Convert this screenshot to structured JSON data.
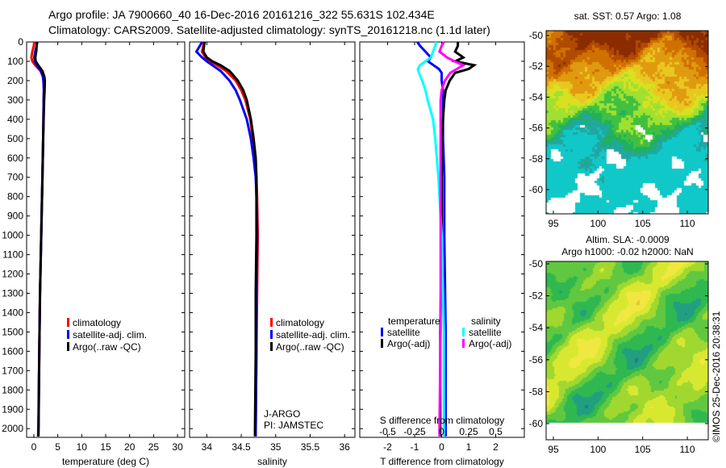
{
  "header": {
    "line1": "Argo profile: JA 7900660_40 16-Dec-2016 20161216_322 55.631S 102.434E",
    "line2": "Climatology: CARS2009. Satellite-adjusted climatology: synTS_20161218.nc (1.1d later)"
  },
  "colors": {
    "climatology": "#ff0000",
    "satellite": "#0000ff",
    "argo": "#000000",
    "sal_satellite": "#00ffff",
    "sal_argo": "#ff00ff"
  },
  "chart_data": [
    {
      "type": "line",
      "name": "temperature",
      "xlabel": "temperature (deg C)",
      "ylabel": "",
      "xlim": [
        -1.5,
        31.5
      ],
      "ylim": [
        2045,
        0
      ],
      "xticks": [
        0,
        5,
        10,
        15,
        20,
        25,
        30
      ],
      "yticks": [
        0,
        100,
        200,
        300,
        400,
        500,
        600,
        700,
        800,
        900,
        1000,
        1100,
        1200,
        1300,
        1400,
        1500,
        1600,
        1700,
        1800,
        1900,
        2000
      ],
      "legend": [
        "climatology",
        "satellite-adj. clim.",
        "Argo(..raw -QC)"
      ],
      "depth": [
        0,
        20,
        50,
        80,
        100,
        120,
        150,
        180,
        200,
        250,
        300,
        400,
        500,
        700,
        1000,
        1300,
        1600,
        2000,
        2040
      ],
      "series": [
        {
          "name": "climatology",
          "color": "#ff0000",
          "values": [
            0.1,
            0.0,
            -0.3,
            -0.5,
            -0.3,
            0.3,
            1.4,
            1.9,
            2.0,
            2.1,
            2.05,
            2.0,
            1.95,
            1.8,
            1.55,
            1.3,
            1.15,
            1.0,
            0.95
          ]
        },
        {
          "name": "satellite-adj. clim.",
          "color": "#0000ff",
          "values": [
            0.6,
            0.6,
            0.3,
            0.1,
            0.2,
            0.6,
            1.5,
            1.9,
            2.0,
            2.1,
            2.05,
            2.0,
            1.95,
            1.8,
            1.55,
            1.3,
            1.15,
            1.0,
            0.95
          ]
        },
        {
          "name": "Argo(..raw -QC)",
          "color": "#000000",
          "values": [
            0.7,
            0.6,
            0.5,
            0.3,
            0.4,
            0.9,
            1.8,
            2.2,
            2.3,
            2.25,
            2.15,
            2.05,
            1.95,
            1.8,
            1.55,
            1.3,
            1.15,
            0.95,
            0.9
          ]
        }
      ]
    },
    {
      "type": "line",
      "name": "salinity",
      "xlabel": "salinity",
      "xlim": [
        33.75,
        36.15
      ],
      "ylim": [
        2045,
        0
      ],
      "xticks": [
        34,
        34.5,
        35,
        35.5,
        36
      ],
      "legend": [
        "climatology",
        "satellite-adj. clim.",
        "Argo(..raw -QC)"
      ],
      "annotation": [
        "J-ARGO",
        "PI: JAMSTEC"
      ],
      "depth": [
        0,
        20,
        50,
        80,
        100,
        120,
        150,
        200,
        250,
        300,
        400,
        500,
        600,
        700,
        800,
        1000,
        1300,
        1600,
        2000,
        2040
      ],
      "series": [
        {
          "name": "climatology",
          "color": "#ff0000",
          "values": [
            33.95,
            33.95,
            33.93,
            33.98,
            34.05,
            34.15,
            34.28,
            34.42,
            34.5,
            34.56,
            34.63,
            34.67,
            34.7,
            34.72,
            34.73,
            34.74,
            34.73,
            34.72,
            34.71,
            34.71
          ]
        },
        {
          "name": "satellite-adj. clim.",
          "color": "#0000ff",
          "values": [
            33.93,
            33.9,
            33.85,
            33.93,
            34.0,
            34.08,
            34.2,
            34.33,
            34.42,
            34.48,
            34.58,
            34.64,
            34.68,
            34.71,
            34.72,
            34.73,
            34.72,
            34.72,
            34.71,
            34.71
          ]
        },
        {
          "name": "Argo(..raw -QC)",
          "color": "#000000",
          "values": [
            33.97,
            33.96,
            33.95,
            34.0,
            34.08,
            34.2,
            34.33,
            34.45,
            34.53,
            34.58,
            34.64,
            34.68,
            34.71,
            34.72,
            34.72,
            34.72,
            34.71,
            34.71,
            34.7,
            34.7
          ]
        }
      ]
    },
    {
      "type": "line",
      "name": "difference",
      "xlabel": "T difference from climatology",
      "x2label": "S difference from climatology",
      "xlim": [
        -3.03,
        3.06
      ],
      "ylim": [
        2045,
        0
      ],
      "xticks": [
        -2,
        -1,
        0,
        1,
        2
      ],
      "x2ticks": [
        -0.5,
        -0.25,
        0,
        0.25,
        0.5
      ],
      "legend_temperature": {
        "title": "temperature",
        "items": [
          "satellite",
          "Argo(-adj)"
        ]
      },
      "legend_salinity": {
        "title": "salinity",
        "items": [
          "satellite",
          "Argo(-adj)"
        ]
      },
      "depth": [
        0,
        20,
        50,
        80,
        100,
        120,
        140,
        160,
        200,
        250,
        300,
        400,
        500,
        700,
        1000,
        1500,
        2000,
        2040
      ],
      "series": [
        {
          "name": "T satellite",
          "color": "#0000ff",
          "values": [
            -0.9,
            -0.8,
            -0.6,
            -0.4,
            -0.5,
            -0.3,
            -0.1,
            0.0,
            0.0,
            0.05,
            0.05,
            0.05,
            0.05,
            0.1,
            0.1,
            0.15,
            0.15,
            0.15
          ]
        },
        {
          "name": "T Argo(-adj)",
          "color": "#000000",
          "values": [
            0.6,
            0.6,
            0.5,
            0.8,
            0.5,
            1.2,
            1.0,
            0.5,
            0.3,
            0.15,
            0.1,
            0.05,
            0.0,
            0.0,
            0.0,
            -0.05,
            -0.05,
            -0.05
          ]
        },
        {
          "name": "S satellite",
          "color": "#00ffff",
          "values": [
            -0.05,
            -0.06,
            -0.08,
            -0.1,
            -0.15,
            -0.2,
            -0.22,
            -0.21,
            -0.18,
            -0.15,
            -0.13,
            -0.08,
            -0.06,
            -0.03,
            0.0,
            0.02,
            0.02,
            0.02
          ]
        },
        {
          "name": "S Argo(-adj)",
          "color": "#ff00ff",
          "values": [
            0.02,
            0.0,
            -0.02,
            0.05,
            0.12,
            0.2,
            0.14,
            0.08,
            0.03,
            0.0,
            -0.01,
            -0.01,
            -0.01,
            -0.01,
            -0.01,
            -0.01,
            -0.02,
            -0.02
          ]
        }
      ]
    },
    {
      "type": "heatmap",
      "name": "sst-map",
      "title": "sat. SST: 0.57 Argo: 1.08",
      "xlim": [
        94.2,
        112.3
      ],
      "ylim": [
        -61.6,
        -49.7
      ],
      "xticks": [
        95,
        100,
        105,
        110
      ],
      "yticks": [
        -50,
        -52,
        -54,
        -56,
        -58,
        -60
      ]
    },
    {
      "type": "heatmap",
      "name": "sla-map",
      "title": [
        "Altim. SLA: -0.0009",
        "Argo h1000: -0.02 h2000: NaN"
      ],
      "xlim": [
        94.2,
        112.3
      ],
      "ylim": [
        -61.4,
        -49.7
      ],
      "xticks": [
        95,
        100,
        105,
        110
      ],
      "yticks": [
        -50,
        -52,
        -54,
        -56,
        -58,
        -60
      ],
      "credit": "©IMOS 25-Dec-2016 20:38:31"
    }
  ]
}
